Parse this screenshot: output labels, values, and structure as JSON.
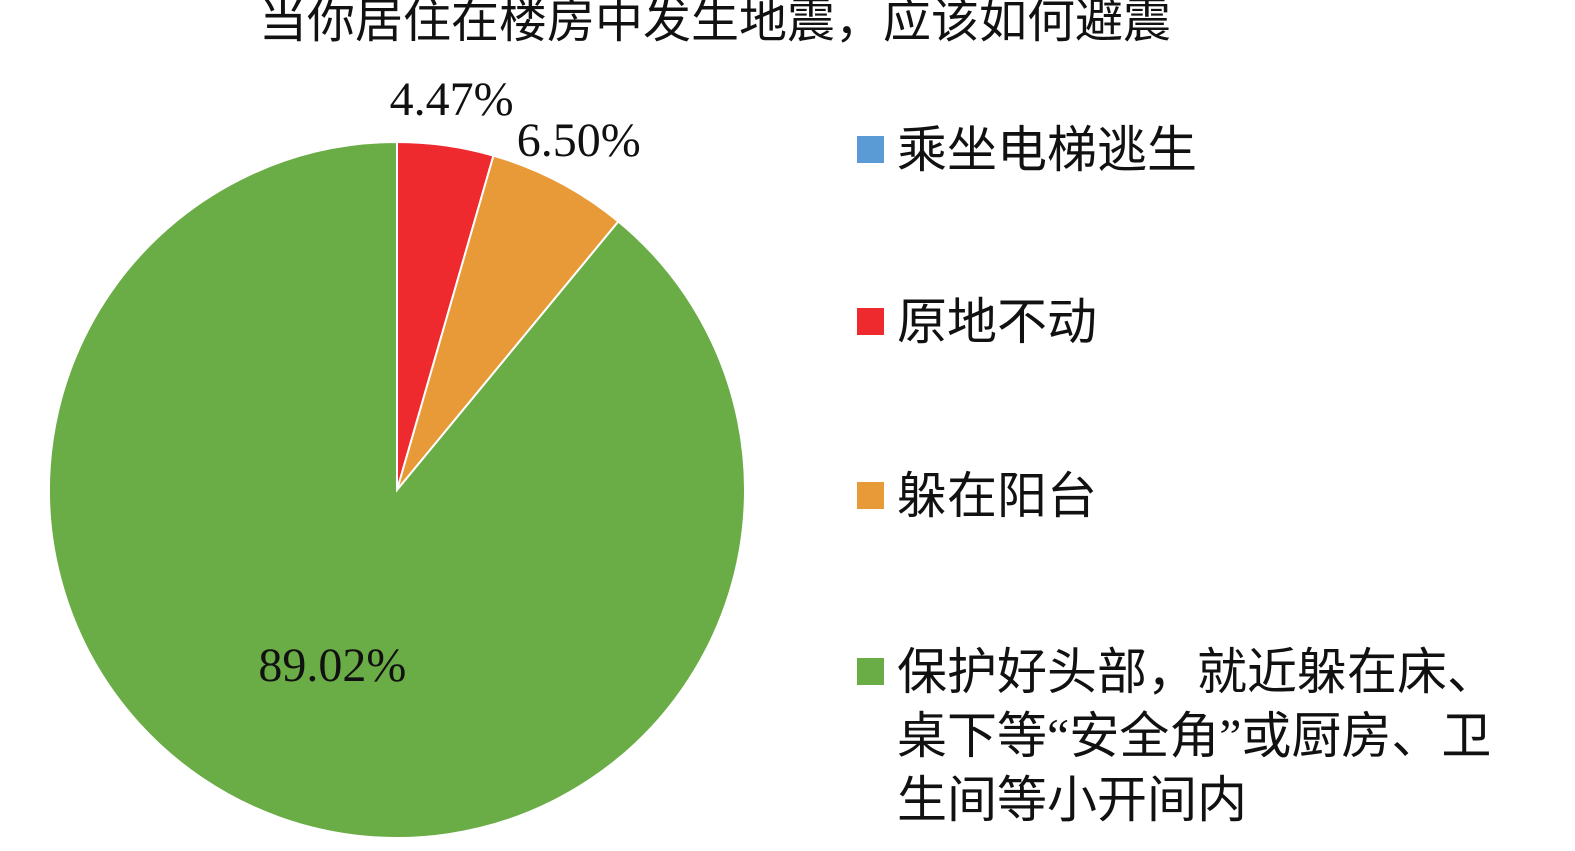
{
  "chart_data": {
    "type": "pie",
    "title": "当你居住在楼房中发生地震，应该如何避震",
    "categories": [
      "乘坐电梯逃生",
      "原地不动",
      "躲在阳台",
      "保护好头部，就近躲在床、桌下等“安全角”或厨房、卫生间等小开间内"
    ],
    "values": [
      0,
      4.47,
      6.5,
      89.02
    ],
    "value_labels": [
      null,
      "4.47%",
      "6.50%",
      "89.02%"
    ],
    "colors": [
      "#5b9bd5",
      "#ee2a2f",
      "#e89a38",
      "#6aac46"
    ],
    "legend": "right"
  }
}
